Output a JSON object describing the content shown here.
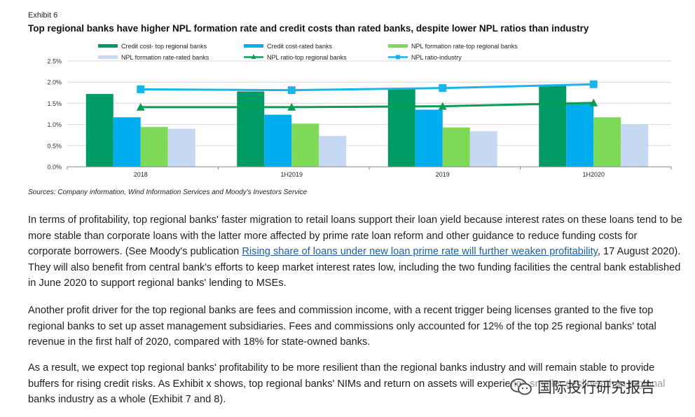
{
  "exhibit": {
    "label": "Exhibit 6",
    "title": "Top regional banks have higher NPL formation rate and credit costs than rated banks, despite lower NPL ratios than industry"
  },
  "chart_data": {
    "type": "bar",
    "categories": [
      "2018",
      "1H2019",
      "2019",
      "1H2020"
    ],
    "ylim": [
      0,
      2.5
    ],
    "yticks": [
      "0.0%",
      "0.5%",
      "1.0%",
      "1.5%",
      "2.0%",
      "2.5%"
    ],
    "legend_position": "top",
    "grid": "horizontal",
    "series": [
      {
        "name": "Credit cost- top regional banks",
        "kind": "bar",
        "color": "#009a64",
        "values": [
          1.72,
          1.78,
          1.83,
          1.93
        ]
      },
      {
        "name": "Credit cost-rated banks",
        "kind": "bar",
        "color": "#00aeef",
        "values": [
          1.17,
          1.23,
          1.35,
          1.49
        ]
      },
      {
        "name": "NPL formation rate-top regional banks",
        "kind": "bar",
        "color": "#7ed957",
        "values": [
          0.94,
          1.02,
          0.93,
          1.17
        ]
      },
      {
        "name": "NPL formation rate-rated banks",
        "kind": "bar",
        "color": "#c7d9f2",
        "values": [
          0.9,
          0.73,
          0.84,
          1.01
        ]
      },
      {
        "name": "NPL ratio-top regional banks",
        "kind": "line",
        "marker": "triangle",
        "color": "#0a9e55",
        "values": [
          1.41,
          1.41,
          1.43,
          1.51
        ]
      },
      {
        "name": "NPL ratio-industry",
        "kind": "line",
        "marker": "square",
        "color": "#1ab4ea",
        "values": [
          1.83,
          1.81,
          1.86,
          1.95
        ]
      }
    ]
  },
  "source": "Sources: Company information, Wind Information Services and Moody's Investors Service",
  "paragraphs": {
    "p1_before": "In terms of profitability, top regional banks' faster migration to retail loans support their loan yield because interest rates on these loans tend to be more stable than corporate loans with the latter more affected by prime rate loan reform and other guidance to reduce funding costs for corporate borrowers. (See Moody's publication ",
    "p1_link": "Rising share of loans under new loan prime rate will further weaken profitability",
    "p1_after": ", 17 August 2020). They will also benefit from central bank's efforts to keep market interest rates low, including the two funding facilities the central bank established in June 2020 to support regional banks' lending to MSEs.",
    "p2": "Another profit driver for the top regional banks are fees and commission income, with a recent trigger being licenses granted to the five top regional banks to set up asset management subsidiaries. Fees and commissions only accounted for 12% of the top 25 regional banks' total revenue in the first half of 2020, compared with 18% for state-owned banks.",
    "p3": "As a result, we expect top regional banks' profitability to be more resilient than the regional banks industry and will remain stable to provide buffers for rising credit risks. As Exhibit x shows, top regional banks' NIMs and return on assets will experience smaller declines than regional banks industry as a whole (Exhibit 7 and 8)."
  },
  "watermark": {
    "icon": "wechat-icon",
    "text": "国际投行研究报告"
  }
}
